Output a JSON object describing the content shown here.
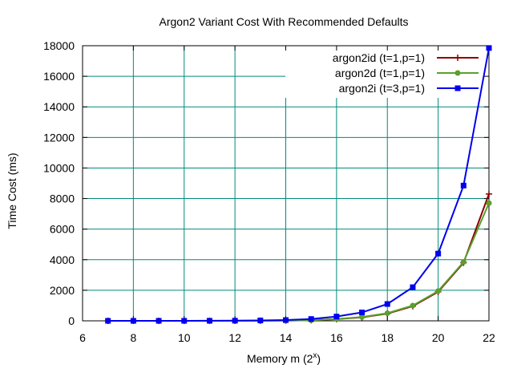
{
  "chart_data": {
    "type": "line",
    "title": "Argon2 Variant Cost With Recommended Defaults",
    "xlabel": "Memory m (2",
    "xlabel_sup": "x",
    "xlabel_close": ")",
    "ylabel": "Time Cost (ms)",
    "xlim": [
      6,
      22
    ],
    "ylim": [
      0,
      18000
    ],
    "xticks": [
      6,
      8,
      10,
      12,
      14,
      16,
      18,
      20,
      22
    ],
    "yticks": [
      0,
      2000,
      4000,
      6000,
      8000,
      10000,
      12000,
      14000,
      16000,
      18000
    ],
    "grid": true,
    "grid_color": "#008b7a",
    "legend_position": "top-right",
    "series": [
      {
        "name": "argon2id (t=1,p=1)",
        "color": "#8b0000",
        "marker": "plus",
        "x": [
          7,
          8,
          9,
          10,
          11,
          12,
          13,
          14,
          15,
          16,
          17,
          18,
          19,
          20,
          21,
          22
        ],
        "y": [
          0,
          0,
          0,
          0,
          1,
          3,
          7,
          16,
          40,
          110,
          230,
          470,
          960,
          1900,
          3800,
          8300
        ]
      },
      {
        "name": "argon2d (t=1,p=1)",
        "color": "#5aa02c",
        "marker": "circle",
        "x": [
          7,
          8,
          9,
          10,
          11,
          12,
          13,
          14,
          15,
          16,
          17,
          18,
          19,
          20,
          21,
          22
        ],
        "y": [
          0,
          0,
          0,
          0,
          1,
          3,
          7,
          16,
          40,
          120,
          250,
          500,
          1000,
          1950,
          3850,
          7700
        ]
      },
      {
        "name": "argon2i (t=3,p=1)",
        "color": "#0000ee",
        "marker": "square",
        "x": [
          7,
          8,
          9,
          10,
          11,
          12,
          13,
          14,
          15,
          16,
          17,
          18,
          19,
          20,
          21,
          22
        ],
        "y": [
          0,
          0,
          1,
          2,
          5,
          10,
          25,
          50,
          120,
          280,
          550,
          1100,
          2200,
          4400,
          8850,
          17850
        ]
      }
    ]
  }
}
